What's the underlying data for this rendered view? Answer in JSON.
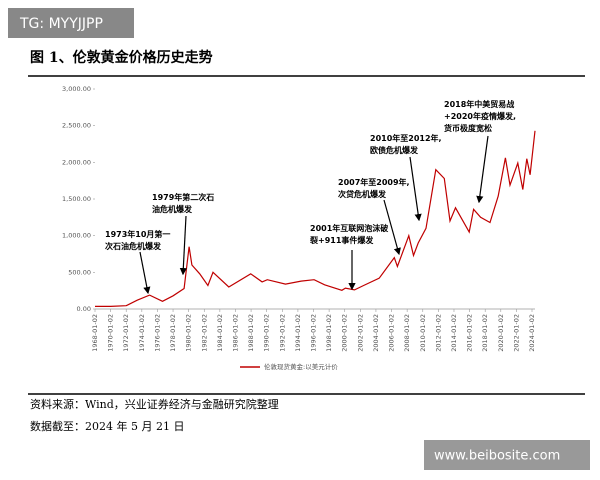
{
  "watermark": "TG: MYYJJPP",
  "watermark_site": "www.beibosite.com",
  "chart_data": {
    "type": "line",
    "title": "图 1、伦敦黄金价格历史走势",
    "x": [
      "1968-01-02",
      "1970-01-02",
      "1972-01-03",
      "1973-06-01",
      "1974-12-30",
      "1976-08-25",
      "1978-01-03",
      "1979-06-01",
      "1980-01-21",
      "1980-06-02",
      "1981-06-01",
      "1982-06-21",
      "1983-02-15",
      "1985-02-25",
      "1987-12-14",
      "1989-06-01",
      "1990-02-01",
      "1992-06-01",
      "1994-06-01",
      "1996-02-01",
      "1997-06-02",
      "1999-08-25",
      "2000-02-01",
      "2001-04-02",
      "2002-06-03",
      "2004-06-01",
      "2006-05-12",
      "2006-10-02",
      "2008-03-17",
      "2008-10-24",
      "2009-06-01",
      "2010-06-01",
      "2011-09-06",
      "2012-10-04",
      "2013-06-28",
      "2014-03-14",
      "2015-12-17",
      "2016-07-06",
      "2017-06-01",
      "2018-08-16",
      "2019-09-04",
      "2020-08-06",
      "2021-03-08",
      "2022-03-08",
      "2022-10-28",
      "2023-05-04",
      "2023-10-05",
      "2024-05-20"
    ],
    "series": [
      {
        "name": "伦敦现货黄金:以美元计价",
        "color": "#c00000",
        "values": [
          35,
          35,
          45,
          120,
          190,
          105,
          180,
          280,
          850,
          600,
          480,
          320,
          500,
          300,
          480,
          370,
          400,
          340,
          380,
          400,
          330,
          255,
          285,
          260,
          320,
          420,
          700,
          580,
          1000,
          730,
          900,
          1100,
          1900,
          1780,
          1200,
          1380,
          1050,
          1360,
          1250,
          1180,
          1540,
          2060,
          1690,
          1990,
          1630,
          2050,
          1830,
          2430
        ]
      }
    ],
    "xlim": [
      "1968-01-02",
      "2024-05-21"
    ],
    "xticks": [
      "1968-01-02",
      "1970-01-02",
      "1972-01-02",
      "1974-01-02",
      "1976-01-02",
      "1978-01-02",
      "1980-01-02",
      "1982-01-02",
      "1984-01-02",
      "1986-01-02",
      "1988-01-02",
      "1990-01-02",
      "1992-01-02",
      "1994-01-02",
      "1996-01-02",
      "1998-01-02",
      "2000-01-02",
      "2002-01-02",
      "2004-01-02",
      "2006-01-02",
      "2008-01-02",
      "2010-01-02",
      "2012-01-02",
      "2014-01-02",
      "2016-01-02",
      "2018-01-02",
      "2020-01-02",
      "2022-01-02",
      "2024-01-02"
    ],
    "ylim": [
      0,
      3000
    ],
    "yticks": [
      {
        "value": 0,
        "label": "0.00"
      },
      {
        "value": 500,
        "label": "500.00"
      },
      {
        "value": 1000,
        "label": "1,000.00"
      },
      {
        "value": 1500,
        "label": "1,500.00"
      },
      {
        "value": 2000,
        "label": "2,000.00"
      },
      {
        "value": 2500,
        "label": "2,500.00"
      },
      {
        "value": 3000,
        "label": "3,000.00"
      }
    ],
    "annotations": [
      [
        "1973年10月第一",
        "次石油危机爆发"
      ],
      [
        "1979年第二次石",
        "油危机爆发"
      ],
      [
        "2001年互联网泡沫破",
        "裂+911事件爆发"
      ],
      [
        "2007年至2009年,",
        "次贷危机爆发"
      ],
      [
        "2010年至2012年,",
        "欧债危机爆发"
      ],
      [
        "2018年中美贸易战",
        "+2020年疫情爆发,",
        "货币极度宽松"
      ]
    ],
    "source": "资料来源：Wind，兴业证券经济与金融研究院整理",
    "data_date": "数据截至：2024 年 5 月 21 日"
  }
}
